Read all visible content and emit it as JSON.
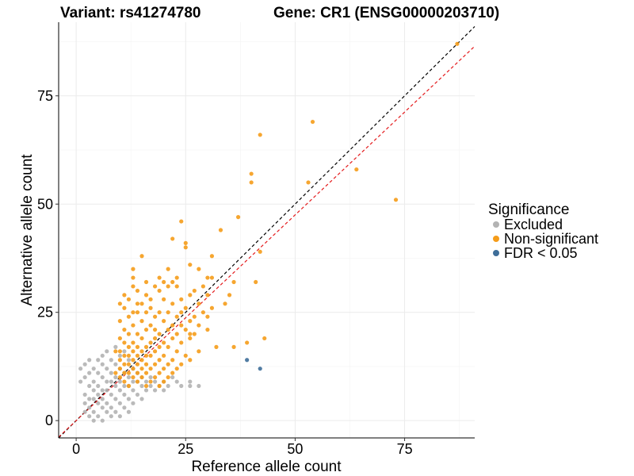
{
  "chart_data": {
    "type": "scatter",
    "title_left": "Variant: rs41274780",
    "title_right": "Gene: CR1 (ENSG00000203710)",
    "xlabel": "Reference allele count",
    "ylabel": "Alternative allele count",
    "xlim": [
      -4,
      91
    ],
    "ylim": [
      -4,
      92
    ],
    "x_ticks": [
      0,
      25,
      50,
      75
    ],
    "y_ticks": [
      0,
      25,
      50,
      75
    ],
    "grid": true,
    "reference_lines": [
      {
        "style": "dashed",
        "color": "#000000",
        "intercept": 0,
        "slope": 1
      },
      {
        "style": "dashed",
        "color": "#e41a1c",
        "intercept": 0,
        "slope": 0.95
      }
    ],
    "legend": {
      "title": "Significance",
      "position": "right",
      "entries": [
        {
          "label": "Excluded",
          "color": "#b3b3b3"
        },
        {
          "label": "Non-significant",
          "color": "#f59c1a"
        },
        {
          "label": "FDR < 0.05",
          "color": "#3e6e99"
        }
      ]
    },
    "series": [
      {
        "name": "Excluded",
        "color": "#b3b3b3",
        "points": [
          [
            1,
            12
          ],
          [
            1,
            9
          ],
          [
            2,
            13
          ],
          [
            2,
            10
          ],
          [
            2,
            6
          ],
          [
            2,
            4
          ],
          [
            2,
            2
          ],
          [
            3,
            14
          ],
          [
            3,
            11
          ],
          [
            3,
            8
          ],
          [
            3,
            5
          ],
          [
            3,
            3
          ],
          [
            3,
            1
          ],
          [
            4,
            12
          ],
          [
            4,
            9
          ],
          [
            4,
            7
          ],
          [
            4,
            5
          ],
          [
            4,
            2
          ],
          [
            4,
            0
          ],
          [
            5,
            14
          ],
          [
            5,
            11
          ],
          [
            5,
            8
          ],
          [
            5,
            6
          ],
          [
            5,
            4
          ],
          [
            5,
            1
          ],
          [
            6,
            15
          ],
          [
            6,
            13
          ],
          [
            6,
            10
          ],
          [
            6,
            7
          ],
          [
            6,
            5
          ],
          [
            6,
            3
          ],
          [
            6,
            0
          ],
          [
            7,
            16
          ],
          [
            7,
            12
          ],
          [
            7,
            9
          ],
          [
            7,
            7
          ],
          [
            7,
            4
          ],
          [
            7,
            2
          ],
          [
            8,
            14
          ],
          [
            8,
            11
          ],
          [
            8,
            9
          ],
          [
            8,
            6
          ],
          [
            8,
            3
          ],
          [
            8,
            1
          ],
          [
            9,
            17
          ],
          [
            9,
            13
          ],
          [
            9,
            10
          ],
          [
            9,
            8
          ],
          [
            9,
            5
          ],
          [
            9,
            2
          ],
          [
            10,
            15
          ],
          [
            10,
            12
          ],
          [
            10,
            9
          ],
          [
            10,
            7
          ],
          [
            10,
            4
          ],
          [
            10,
            1
          ],
          [
            11,
            16
          ],
          [
            11,
            11
          ],
          [
            11,
            8
          ],
          [
            11,
            6
          ],
          [
            11,
            3
          ],
          [
            12,
            14
          ],
          [
            12,
            10
          ],
          [
            12,
            8
          ],
          [
            12,
            5
          ],
          [
            12,
            2
          ],
          [
            13,
            12
          ],
          [
            13,
            9
          ],
          [
            13,
            7
          ],
          [
            13,
            4
          ],
          [
            14,
            11
          ],
          [
            14,
            9
          ],
          [
            14,
            6
          ],
          [
            15,
            10
          ],
          [
            15,
            8
          ],
          [
            15,
            5
          ],
          [
            16,
            9
          ],
          [
            16,
            7
          ],
          [
            17,
            10
          ],
          [
            17,
            8
          ],
          [
            18,
            9
          ],
          [
            18,
            7
          ],
          [
            19,
            8
          ],
          [
            20,
            9
          ],
          [
            20,
            7
          ],
          [
            21,
            8
          ],
          [
            22,
            10
          ],
          [
            23,
            9
          ],
          [
            24,
            8
          ],
          [
            26,
            9
          ],
          [
            26,
            8
          ],
          [
            28,
            8
          ]
        ]
      },
      {
        "name": "Non-significant",
        "color": "#f59c1a",
        "points": [
          [
            87,
            87
          ],
          [
            54,
            69
          ],
          [
            42,
            66
          ],
          [
            64,
            58
          ],
          [
            40,
            57
          ],
          [
            40,
            55
          ],
          [
            53,
            55
          ],
          [
            73,
            51
          ],
          [
            37,
            47
          ],
          [
            24,
            46
          ],
          [
            33,
            44
          ],
          [
            22,
            42
          ],
          [
            25,
            41
          ],
          [
            25,
            40
          ],
          [
            42,
            39
          ],
          [
            15,
            38
          ],
          [
            31,
            38
          ],
          [
            26,
            36
          ],
          [
            13,
            35
          ],
          [
            21,
            35
          ],
          [
            28,
            35
          ],
          [
            13,
            33
          ],
          [
            23,
            33
          ],
          [
            30,
            33
          ],
          [
            31,
            33
          ],
          [
            16,
            32
          ],
          [
            20,
            32
          ],
          [
            22,
            32
          ],
          [
            36,
            32
          ],
          [
            41,
            32
          ],
          [
            13,
            31
          ],
          [
            18,
            31
          ],
          [
            21,
            31
          ],
          [
            23,
            31
          ],
          [
            29,
            31
          ],
          [
            14,
            30
          ],
          [
            19,
            30
          ],
          [
            27,
            30
          ],
          [
            11,
            29
          ],
          [
            16,
            29
          ],
          [
            26,
            29
          ],
          [
            30,
            29
          ],
          [
            35,
            29
          ],
          [
            12,
            28
          ],
          [
            20,
            28
          ],
          [
            24,
            28
          ],
          [
            10,
            27
          ],
          [
            15,
            27
          ],
          [
            22,
            27
          ],
          [
            28,
            27
          ],
          [
            34,
            27
          ],
          [
            11,
            26
          ],
          [
            17,
            26
          ],
          [
            25,
            26
          ],
          [
            31,
            26
          ],
          [
            13,
            25
          ],
          [
            14,
            25
          ],
          [
            16,
            25
          ],
          [
            19,
            25
          ],
          [
            21,
            25
          ],
          [
            24,
            25
          ],
          [
            29,
            25
          ],
          [
            12,
            24
          ],
          [
            18,
            24
          ],
          [
            23,
            24
          ],
          [
            27,
            24
          ],
          [
            30,
            24
          ],
          [
            10,
            23
          ],
          [
            15,
            23
          ],
          [
            20,
            23
          ],
          [
            26,
            23
          ],
          [
            13,
            22
          ],
          [
            17,
            22
          ],
          [
            22,
            22
          ],
          [
            28,
            22
          ],
          [
            11,
            21
          ],
          [
            16,
            21
          ],
          [
            21,
            21
          ],
          [
            25,
            21
          ],
          [
            30,
            21
          ],
          [
            12,
            20
          ],
          [
            14,
            20
          ],
          [
            19,
            20
          ],
          [
            23,
            20
          ],
          [
            27,
            20
          ],
          [
            10,
            19
          ],
          [
            15,
            19
          ],
          [
            18,
            19
          ],
          [
            22,
            19
          ],
          [
            26,
            19
          ],
          [
            43,
            19
          ],
          [
            11,
            18
          ],
          [
            13,
            18
          ],
          [
            17,
            18
          ],
          [
            20,
            18
          ],
          [
            24,
            18
          ],
          [
            12,
            17
          ],
          [
            14,
            17
          ],
          [
            16,
            17
          ],
          [
            19,
            17
          ],
          [
            21,
            17
          ],
          [
            32,
            17
          ],
          [
            10,
            16
          ],
          [
            13,
            16
          ],
          [
            15,
            16
          ],
          [
            18,
            16
          ],
          [
            23,
            16
          ],
          [
            28,
            16
          ],
          [
            11,
            15
          ],
          [
            12,
            15
          ],
          [
            14,
            15
          ],
          [
            16,
            15
          ],
          [
            17,
            15
          ],
          [
            20,
            15
          ],
          [
            25,
            15
          ],
          [
            10,
            14
          ],
          [
            13,
            14
          ],
          [
            15,
            14
          ],
          [
            19,
            14
          ],
          [
            22,
            14
          ],
          [
            26,
            14
          ],
          [
            11,
            13
          ],
          [
            12,
            13
          ],
          [
            14,
            13
          ],
          [
            16,
            13
          ],
          [
            18,
            13
          ],
          [
            21,
            13
          ],
          [
            24,
            13
          ],
          [
            10,
            12
          ],
          [
            13,
            12
          ],
          [
            15,
            12
          ],
          [
            17,
            12
          ],
          [
            20,
            12
          ],
          [
            23,
            12
          ],
          [
            11,
            11
          ],
          [
            12,
            11
          ],
          [
            14,
            11
          ],
          [
            16,
            11
          ],
          [
            19,
            11
          ],
          [
            22,
            11
          ],
          [
            10,
            10
          ],
          [
            13,
            10
          ],
          [
            15,
            10
          ],
          [
            18,
            10
          ],
          [
            21,
            10
          ],
          [
            11,
            9
          ],
          [
            14,
            9
          ],
          [
            17,
            9
          ],
          [
            20,
            9
          ],
          [
            12,
            8
          ],
          [
            16,
            8
          ],
          [
            19,
            8
          ],
          [
            36,
            17
          ],
          [
            39,
            18
          ],
          [
            18,
            21
          ],
          [
            24,
            22
          ],
          [
            26,
            20
          ],
          [
            9,
            16
          ],
          [
            9,
            11
          ],
          [
            14,
            27
          ],
          [
            19,
            33
          ],
          [
            17,
            28
          ]
        ]
      },
      {
        "name": "FDR < 0.05",
        "color": "#3e6e99",
        "points": [
          [
            39,
            14
          ],
          [
            42,
            12
          ]
        ]
      }
    ]
  }
}
